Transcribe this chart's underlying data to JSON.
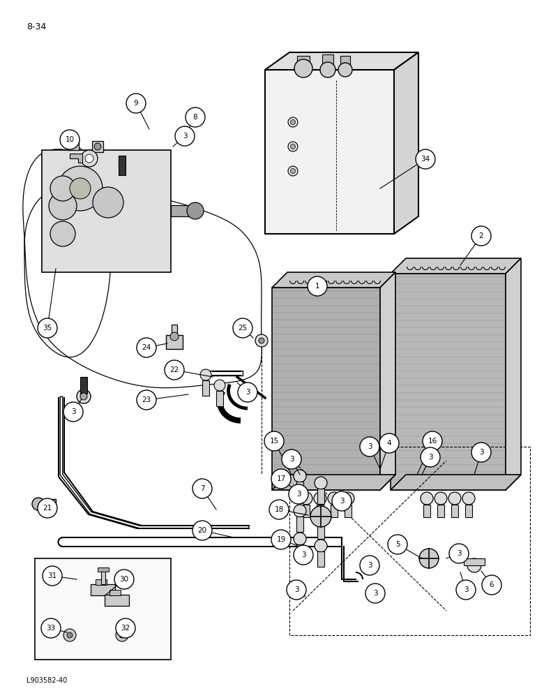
{
  "page_label": "8-34",
  "figure_label": "L903582-40",
  "bg_color": "#ffffff",
  "line_color": "#000000"
}
